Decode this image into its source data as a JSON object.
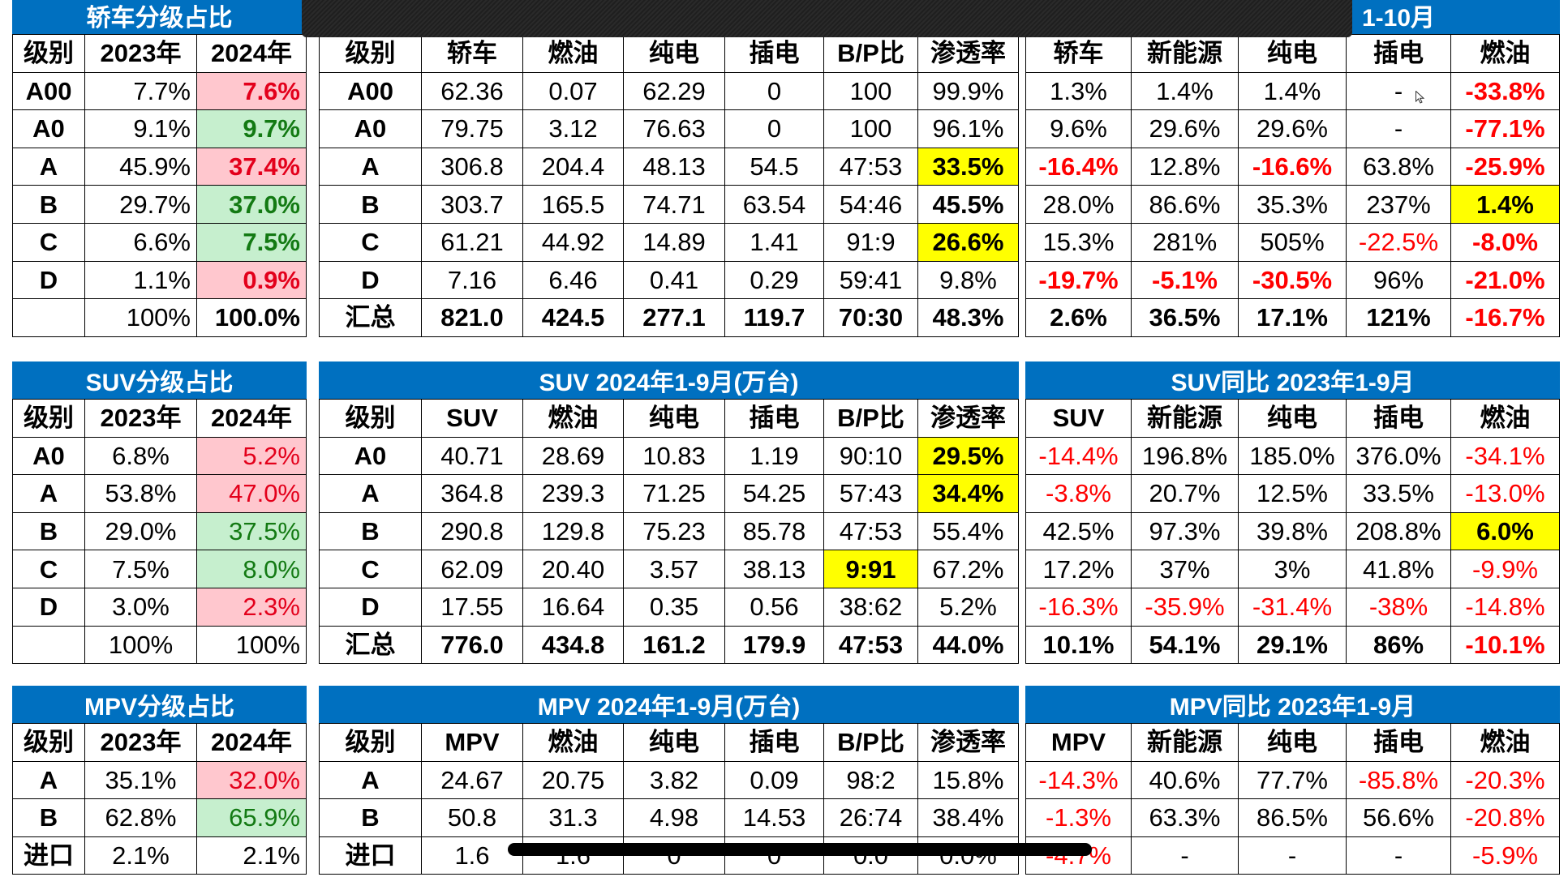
{
  "colors": {
    "title_bar": "#0070C0",
    "negative": "#FF0000",
    "highlight_pink": "#FFC7CE",
    "highlight_pink_text": "#E3001B",
    "highlight_green": "#C6EFCE",
    "highlight_green_text": "#137A13",
    "highlight_yellow": "#FFFF00"
  },
  "sections": [
    {
      "share": {
        "title": "轿车分级占比",
        "headers": [
          "级别",
          "2023年",
          "2024年"
        ],
        "bold_cols": [
          2
        ],
        "rows": [
          [
            "A00",
            "7.7%",
            {
              "t": "7.6%",
              "hl": "pink"
            }
          ],
          [
            "A0",
            "9.1%",
            {
              "t": "9.7%",
              "hl": "green"
            }
          ],
          [
            "A",
            "45.9%",
            {
              "t": "37.4%",
              "hl": "pink"
            }
          ],
          [
            "B",
            "29.7%",
            {
              "t": "37.0%",
              "hl": "green"
            }
          ],
          [
            "C",
            "6.6%",
            {
              "t": "7.5%",
              "hl": "green"
            }
          ],
          [
            "D",
            "1.1%",
            {
              "t": "0.9%",
              "hl": "pink"
            }
          ],
          [
            "",
            "100%",
            "100.0%"
          ]
        ]
      },
      "volume": {
        "title": "",
        "headers": [
          "级别",
          "轿车",
          "燃油",
          "纯电",
          "插电",
          "B/P比",
          "渗透率"
        ],
        "bold_last_row": true,
        "rows": [
          [
            "A00",
            "62.36",
            "0.07",
            "62.29",
            "0",
            "100",
            "99.9%"
          ],
          [
            "A0",
            "79.75",
            "3.12",
            "76.63",
            "0",
            "100",
            "96.1%"
          ],
          [
            "A",
            "306.8",
            "204.4",
            "48.13",
            "54.5",
            "47:53",
            {
              "t": "33.5%",
              "hl": "yellow",
              "b": 1
            }
          ],
          [
            "B",
            "303.7",
            "165.5",
            "74.71",
            "63.54",
            "54:46",
            {
              "t": "45.5%",
              "b": 1
            }
          ],
          [
            "C",
            "61.21",
            "44.92",
            "14.89",
            "1.41",
            "91:9",
            {
              "t": "26.6%",
              "hl": "yellow",
              "b": 1
            }
          ],
          [
            "D",
            "7.16",
            "6.46",
            "0.41",
            "0.29",
            "59:41",
            "9.8%"
          ],
          [
            "汇总",
            "821.0",
            "424.5",
            "277.1",
            "119.7",
            "70:30",
            "48.3%"
          ]
        ]
      },
      "yoy": {
        "title": "1-10月",
        "headers": [
          "轿车",
          "新能源",
          "纯电",
          "插电",
          "燃油"
        ],
        "bold_last_row": true,
        "rows": [
          [
            "1.3%",
            "1.4%",
            "1.4%",
            "-",
            {
              "t": "-33.8%",
              "b": 1
            }
          ],
          [
            "9.6%",
            "29.6%",
            "29.6%",
            "-",
            {
              "t": "-77.1%",
              "b": 1
            }
          ],
          [
            {
              "t": "-16.4%",
              "b": 1
            },
            "12.8%",
            {
              "t": "-16.6%",
              "b": 1
            },
            "63.8%",
            {
              "t": "-25.9%",
              "b": 1
            }
          ],
          [
            "28.0%",
            "86.6%",
            "35.3%",
            "237%",
            {
              "t": "1.4%",
              "hl": "yellow",
              "b": 1
            }
          ],
          [
            "15.3%",
            "281%",
            "505%",
            "-22.5%",
            {
              "t": "-8.0%",
              "b": 1
            }
          ],
          [
            {
              "t": "-19.7%",
              "b": 1
            },
            {
              "t": "-5.1%",
              "b": 1
            },
            {
              "t": "-30.5%",
              "b": 1
            },
            "96%",
            {
              "t": "-21.0%",
              "b": 1
            }
          ],
          [
            "2.6%",
            "36.5%",
            "17.1%",
            "121%",
            "-16.7%"
          ]
        ]
      }
    },
    {
      "share": {
        "title": "SUV分级占比",
        "headers": [
          "级别",
          "2023年",
          "2024年"
        ],
        "rows": [
          [
            "A0",
            "6.8%",
            {
              "t": "5.2%",
              "hl": "pink"
            }
          ],
          [
            "A",
            "53.8%",
            {
              "t": "47.0%",
              "hl": "pink"
            }
          ],
          [
            "B",
            "29.0%",
            {
              "t": "37.5%",
              "hl": "green"
            }
          ],
          [
            "C",
            "7.5%",
            {
              "t": "8.0%",
              "hl": "green"
            }
          ],
          [
            "D",
            "3.0%",
            {
              "t": "2.3%",
              "hl": "pink"
            }
          ],
          [
            "",
            "100%",
            "100%"
          ]
        ]
      },
      "volume": {
        "title": "SUV 2024年1-9月(万台)",
        "headers": [
          "级别",
          "SUV",
          "燃油",
          "纯电",
          "插电",
          "B/P比",
          "渗透率"
        ],
        "bold_last_row": true,
        "rows": [
          [
            "A0",
            "40.71",
            "28.69",
            "10.83",
            "1.19",
            "90:10",
            {
              "t": "29.5%",
              "hl": "yellow",
              "b": 1
            }
          ],
          [
            "A",
            "364.8",
            "239.3",
            "71.25",
            "54.25",
            "57:43",
            {
              "t": "34.4%",
              "hl": "yellow",
              "b": 1
            }
          ],
          [
            "B",
            "290.8",
            "129.8",
            "75.23",
            "85.78",
            "47:53",
            "55.4%"
          ],
          [
            "C",
            "62.09",
            "20.40",
            "3.57",
            "38.13",
            {
              "t": "9:91",
              "hl": "yellow",
              "b": 1
            },
            "67.2%"
          ],
          [
            "D",
            "17.55",
            "16.64",
            "0.35",
            "0.56",
            "38:62",
            "5.2%"
          ],
          [
            "汇总",
            "776.0",
            "434.8",
            "161.2",
            "179.9",
            "47:53",
            "44.0%"
          ]
        ]
      },
      "yoy": {
        "title": "SUV同比 2023年1-9月",
        "headers": [
          "SUV",
          "新能源",
          "纯电",
          "插电",
          "燃油"
        ],
        "bold_last_row": true,
        "rows": [
          [
            "-14.4%",
            "196.8%",
            "185.0%",
            "376.0%",
            "-34.1%"
          ],
          [
            "-3.8%",
            "20.7%",
            "12.5%",
            "33.5%",
            "-13.0%"
          ],
          [
            "42.5%",
            "97.3%",
            "39.8%",
            "208.8%",
            {
              "t": "6.0%",
              "hl": "yellow",
              "b": 1
            }
          ],
          [
            "17.2%",
            "37%",
            "3%",
            "41.8%",
            "-9.9%"
          ],
          [
            "-16.3%",
            "-35.9%",
            "-31.4%",
            "-38%",
            "-14.8%"
          ],
          [
            "10.1%",
            "54.1%",
            "29.1%",
            "86%",
            "-10.1%"
          ]
        ]
      }
    },
    {
      "share": {
        "title": "MPV分级占比",
        "headers": [
          "级别",
          "2023年",
          "2024年"
        ],
        "rows": [
          [
            "A",
            "35.1%",
            {
              "t": "32.0%",
              "hl": "pink"
            }
          ],
          [
            "B",
            "62.8%",
            {
              "t": "65.9%",
              "hl": "green"
            }
          ],
          [
            "进口",
            "2.1%",
            "2.1%"
          ]
        ]
      },
      "volume": {
        "title": "MPV 2024年1-9月(万台)",
        "headers": [
          "级别",
          "MPV",
          "燃油",
          "纯电",
          "插电",
          "B/P比",
          "渗透率"
        ],
        "rows": [
          [
            "A",
            "24.67",
            "20.75",
            "3.82",
            "0.09",
            "98:2",
            "15.8%"
          ],
          [
            "B",
            "50.8",
            "31.3",
            "4.98",
            "14.53",
            "26:74",
            "38.4%"
          ],
          [
            "进口",
            "1.6",
            "1.6",
            "0",
            "0",
            "0.0",
            "0.0%"
          ]
        ]
      },
      "yoy": {
        "title": "MPV同比 2023年1-9月",
        "headers": [
          "MPV",
          "新能源",
          "纯电",
          "插电",
          "燃油"
        ],
        "rows": [
          [
            "-14.3%",
            "40.6%",
            "77.7%",
            "-85.8%",
            "-20.3%"
          ],
          [
            "-1.3%",
            "63.3%",
            "86.5%",
            "56.6%",
            "-20.8%"
          ],
          [
            "-4.7%",
            "-",
            "-",
            "-",
            "-5.9%"
          ]
        ]
      }
    }
  ]
}
